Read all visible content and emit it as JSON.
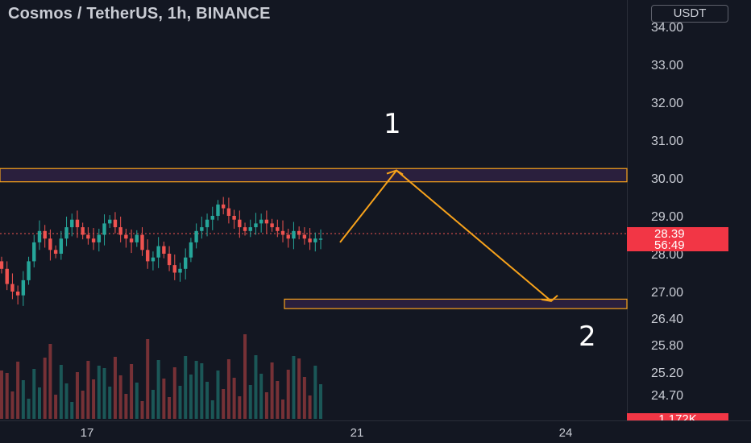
{
  "header": {
    "title": "Cosmos / TetherUS, 1h, BINANCE"
  },
  "currency_button": {
    "label": "USDT"
  },
  "last_price": {
    "value": "28.39",
    "countdown": "56:49"
  },
  "volume_tag": {
    "value": "1.172K"
  },
  "annotations": {
    "label_1": "1",
    "label_2": "2"
  },
  "colors": {
    "background": "#131722",
    "up": "#26a69a",
    "down": "#ef5350",
    "zone_fill": "#2a1f3d",
    "zone_border": "#f7a21b",
    "arrow": "#f7a21b",
    "price_tag": "#f23645"
  },
  "chart_data": {
    "type": "candlestick",
    "title": "Cosmos / TetherUS, 1h, BINANCE",
    "y_axis": {
      "ticks": [
        34.0,
        33.0,
        32.0,
        31.0,
        30.0,
        29.0,
        28.0,
        27.0,
        26.4,
        25.8,
        25.2,
        24.7
      ],
      "tick_labels": [
        "34.00",
        "33.00",
        "32.00",
        "31.00",
        "30.00",
        "29.00",
        "28.00",
        "27.00",
        "26.40",
        "25.80",
        "25.20",
        "24.70"
      ]
    },
    "x_axis": {
      "tick_labels": [
        "17",
        "21",
        "24"
      ]
    },
    "zones": [
      {
        "name": "resistance-zone",
        "low": 29.9,
        "high": 30.25
      },
      {
        "name": "support-zone",
        "low": 26.55,
        "high": 26.8
      }
    ],
    "projection_path": [
      {
        "x_label": "20",
        "y": 28.3
      },
      {
        "x_label": "21.5",
        "y": 30.2
      },
      {
        "x_label": "23.8",
        "y": 26.75
      }
    ],
    "close_path": [
      27.6,
      27.2,
      27.0,
      26.9,
      27.3,
      27.8,
      28.3,
      28.6,
      28.4,
      28.1,
      28.0,
      28.4,
      28.7,
      28.9,
      28.7,
      28.5,
      28.4,
      28.3,
      28.5,
      28.8,
      28.9,
      28.7,
      28.5,
      28.4,
      28.3,
      28.5,
      28.1,
      27.8,
      27.9,
      28.2,
      28.0,
      27.7,
      27.5,
      27.6,
      27.9,
      28.3,
      28.6,
      28.7,
      28.9,
      29.0,
      29.3,
      29.2,
      29.0,
      28.9,
      28.7,
      28.6,
      28.7,
      28.8,
      28.9,
      28.8,
      28.7,
      28.6,
      28.5,
      28.4,
      28.6,
      28.5,
      28.4,
      28.3,
      28.4,
      28.4
    ]
  }
}
